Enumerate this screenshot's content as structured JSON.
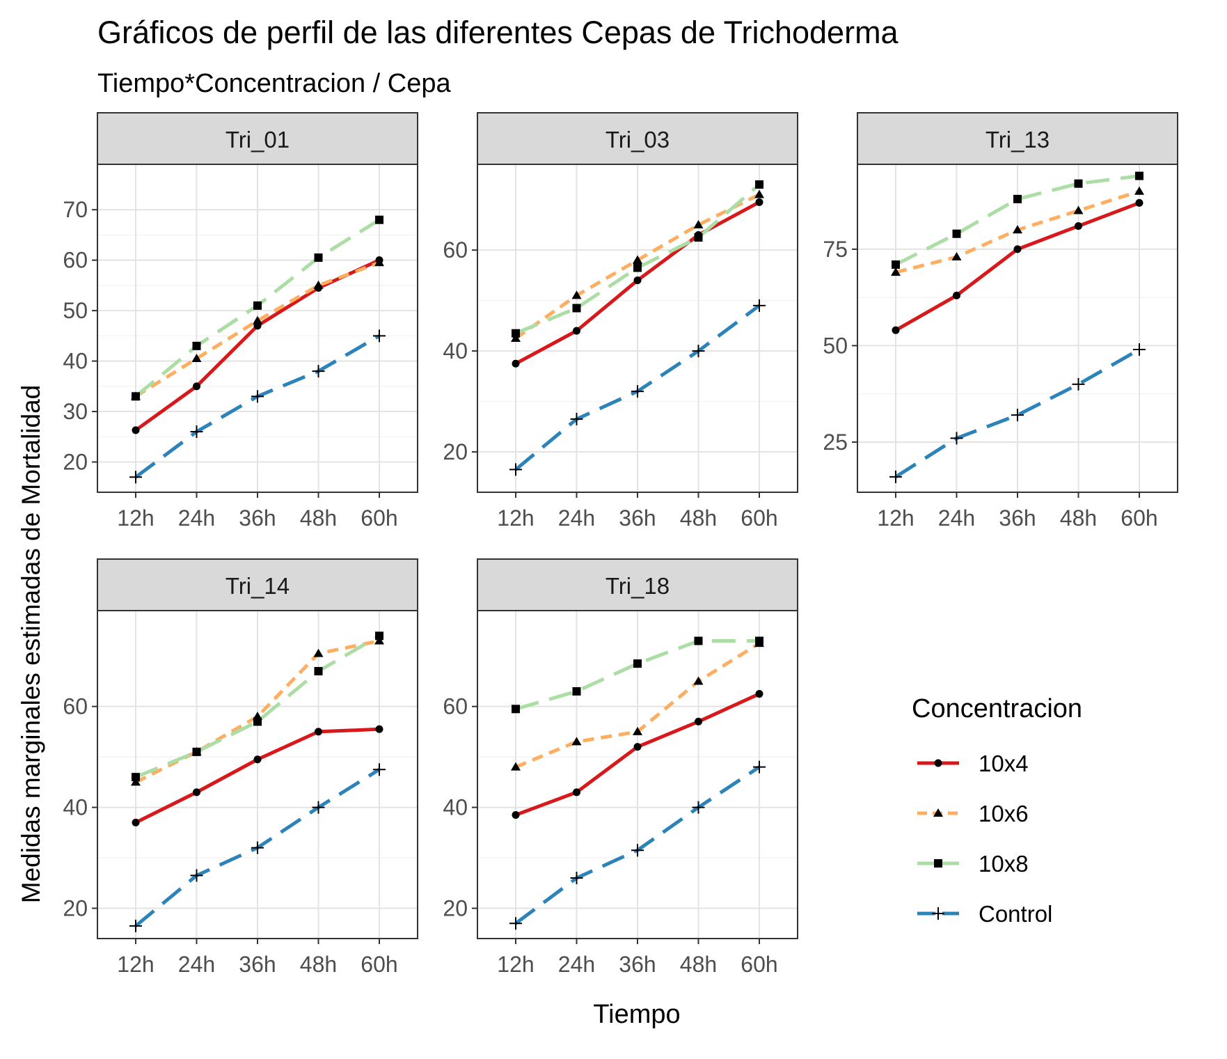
{
  "chart_data": {
    "type": "line",
    "title": "Gráficos de perfil de las diferentes Cepas de Trichoderma",
    "subtitle": "Tiempo*Concentracion / Cepa",
    "xlabel": "Tiempo",
    "ylabel": "Medidas marginales estimadas de Mortalidad",
    "categories": [
      "12h",
      "24h",
      "36h",
      "48h",
      "60h"
    ],
    "grid": true,
    "legend": {
      "title": "Concentracion",
      "position": "right",
      "items": [
        {
          "name": "10x4",
          "color": "#d7191c",
          "dash": "solid",
          "marker": "circle"
        },
        {
          "name": "10x6",
          "color": "#fdae61",
          "dash": "dashed",
          "marker": "triangle"
        },
        {
          "name": "10x8",
          "color": "#abdda4",
          "dash": "longdash",
          "marker": "square"
        },
        {
          "name": "Control",
          "color": "#2b83ba",
          "dash": "longdash",
          "marker": "plus"
        }
      ]
    },
    "panels": [
      {
        "strip": "Tri_01",
        "ylim": [
          14,
          79
        ],
        "yticks": [
          20,
          30,
          40,
          50,
          60,
          70
        ],
        "series": [
          {
            "name": "10x4",
            "values": [
              26.3,
              35,
              47,
              54.5,
              60
            ]
          },
          {
            "name": "10x6",
            "values": [
              33,
              40.5,
              48,
              55,
              59.5
            ]
          },
          {
            "name": "10x8",
            "values": [
              33,
              43,
              51,
              60.5,
              68
            ]
          },
          {
            "name": "Control",
            "values": [
              17,
              26,
              33,
              38,
              45
            ]
          }
        ]
      },
      {
        "strip": "Tri_03",
        "ylim": [
          12,
          77
        ],
        "yticks": [
          20,
          40,
          60
        ],
        "series": [
          {
            "name": "10x4",
            "values": [
              37.5,
              44,
              54,
              63,
              69.5
            ]
          },
          {
            "name": "10x6",
            "values": [
              42.5,
              51,
              58,
              65,
              71
            ]
          },
          {
            "name": "10x8",
            "values": [
              43.5,
              48.5,
              56.5,
              62.5,
              73
            ]
          },
          {
            "name": "Control",
            "values": [
              16.5,
              26.5,
              32,
              40,
              49
            ]
          }
        ]
      },
      {
        "strip": "Tri_13",
        "ylim": [
          12,
          97
        ],
        "yticks": [
          25,
          50,
          75
        ],
        "series": [
          {
            "name": "10x4",
            "values": [
              54,
              63,
              75,
              81,
              87
            ]
          },
          {
            "name": "10x6",
            "values": [
              69,
              73,
              80,
              85,
              90
            ]
          },
          {
            "name": "10x8",
            "values": [
              71,
              79,
              88,
              92,
              94
            ]
          },
          {
            "name": "Control",
            "values": [
              16,
              26,
              32,
              40,
              49
            ]
          }
        ]
      },
      {
        "strip": "Tri_14",
        "ylim": [
          14,
          79
        ],
        "yticks": [
          20,
          40,
          60
        ],
        "series": [
          {
            "name": "10x4",
            "values": [
              37,
              43,
              49.5,
              55,
              55.5
            ]
          },
          {
            "name": "10x6",
            "values": [
              45,
              51,
              58,
              70.5,
              73
            ]
          },
          {
            "name": "10x8",
            "values": [
              46,
              51,
              57,
              67,
              74
            ]
          },
          {
            "name": "Control",
            "values": [
              16.5,
              26.5,
              32,
              40,
              47.5
            ]
          }
        ]
      },
      {
        "strip": "Tri_18",
        "ylim": [
          14,
          79
        ],
        "yticks": [
          20,
          40,
          60
        ],
        "series": [
          {
            "name": "10x4",
            "values": [
              38.5,
              43,
              52,
              57,
              62.5
            ]
          },
          {
            "name": "10x6",
            "values": [
              48,
              53,
              55,
              65,
              72.5
            ]
          },
          {
            "name": "10x8",
            "values": [
              59.5,
              63,
              68.5,
              73,
              73
            ]
          },
          {
            "name": "Control",
            "values": [
              17,
              26,
              31.5,
              40,
              48
            ]
          }
        ]
      }
    ]
  }
}
